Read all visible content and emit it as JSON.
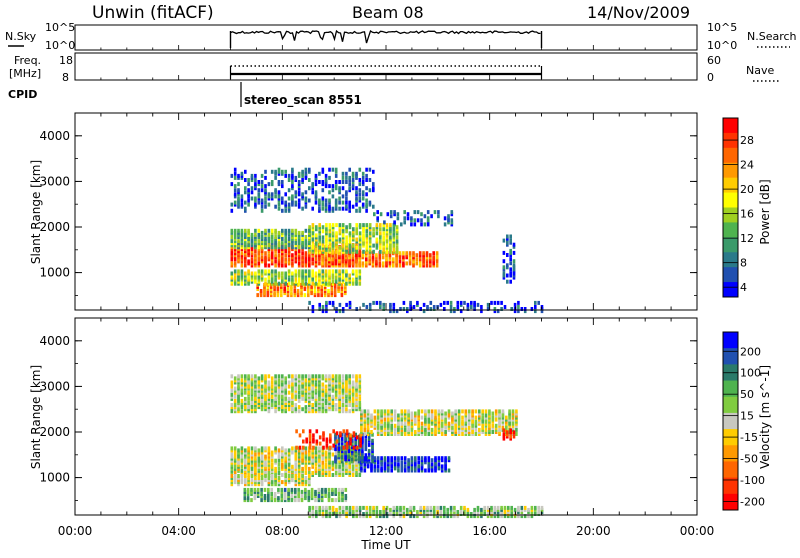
{
  "header": {
    "station": "Unwin (fitACF)",
    "beam": "Beam 08",
    "date": "14/Nov/2009"
  },
  "nsky_panel": {
    "left_label": "N.Sky",
    "right_label": "N.Search",
    "left_ticks": [
      "10^5",
      "10^0"
    ],
    "right_ticks": [
      "10^5",
      "10^0"
    ]
  },
  "freq_panel": {
    "left_label_line1": "Freq.",
    "left_label_line2": "[MHz]",
    "right_label": "Nave",
    "left_ticks": [
      "18",
      "8"
    ],
    "right_ticks": [
      "60",
      "0"
    ]
  },
  "cpid": {
    "label": "CPID",
    "program": "stereo_scan  8551"
  },
  "power_colorbar": {
    "title": "Power [dB]",
    "ticks": [
      "28",
      "24",
      "20",
      "16",
      "12",
      "8",
      "4"
    ],
    "colors": [
      "#ff0000",
      "#ff3300",
      "#ff6600",
      "#ff9900",
      "#ffcc00",
      "#ffff00",
      "#a0d020",
      "#4fb34f",
      "#3a9a6a",
      "#2a7a8a",
      "#2050b0",
      "#0000ff"
    ]
  },
  "velocity_colorbar": {
    "title": "Velocity [m s^-1]",
    "ticks": [
      "200",
      "100",
      "50",
      "15",
      "-15",
      "-50",
      "-100",
      "-200"
    ],
    "colors": [
      "#0000ff",
      "#2050b0",
      "#2a7a6a",
      "#4fb34f",
      "#80cc40",
      "#c8c8c0",
      "#ffcc00",
      "#ff9900",
      "#ff6600",
      "#ff3300",
      "#ff0000"
    ]
  },
  "chart_data": [
    {
      "type": "line",
      "name": "N.Sky / N.Search",
      "x_range": [
        "00:00",
        "24:00"
      ],
      "active_interval": [
        "06:00",
        "18:00"
      ],
      "y_scale": "log",
      "ylim": [
        "10^0",
        "10^5"
      ]
    },
    {
      "type": "line",
      "name": "Freq / Nave",
      "x_range": [
        "00:00",
        "24:00"
      ],
      "active_interval": [
        "06:00",
        "18:00"
      ],
      "ylim_left": [
        8,
        18
      ],
      "ylim_right": [
        0,
        60
      ]
    },
    {
      "type": "heatmap",
      "name": "Power",
      "xlabel": "Time UT",
      "ylabel": "Slant Range [km]",
      "x_ticks": [
        "00:00",
        "04:00",
        "08:00",
        "12:00",
        "16:00",
        "20:00",
        "00:00"
      ],
      "y_ticks": [
        1000,
        2000,
        3000,
        4000
      ],
      "ylim": [
        180,
        4500
      ],
      "x_range_hours": [
        0,
        24
      ],
      "colorbar": "Power [dB]",
      "blobs": [
        {
          "t0": 6.0,
          "t1": 11.0,
          "r0": 1200,
          "r1": 1650,
          "level": 0.85
        },
        {
          "t0": 9.5,
          "t1": 14.0,
          "r0": 1200,
          "r1": 1500,
          "level": 0.8
        },
        {
          "t0": 7.0,
          "t1": 10.5,
          "r0": 550,
          "r1": 800,
          "level": 0.75
        },
        {
          "t0": 6.0,
          "t1": 11.0,
          "r0": 800,
          "r1": 1100,
          "level": 0.45
        },
        {
          "t0": 9.0,
          "t1": 12.5,
          "r0": 1500,
          "r1": 2100,
          "level": 0.45
        },
        {
          "t0": 6.0,
          "t1": 9.0,
          "r0": 1600,
          "r1": 2000,
          "level": 0.35
        },
        {
          "t0": 6.0,
          "t1": 11.5,
          "r0": 2400,
          "r1": 3300,
          "level": 0.15
        },
        {
          "t0": 11.5,
          "t1": 14.5,
          "r0": 2100,
          "r1": 2400,
          "level": 0.15
        },
        {
          "t0": 9.0,
          "t1": 18.0,
          "r0": 200,
          "r1": 400,
          "level": 0.1
        },
        {
          "t0": 16.5,
          "t1": 17.0,
          "r0": 800,
          "r1": 1900,
          "level": 0.1
        }
      ]
    },
    {
      "type": "heatmap",
      "name": "Velocity",
      "xlabel": "Time UT",
      "ylabel": "Slant Range [km]",
      "x_ticks": [
        "00:00",
        "04:00",
        "08:00",
        "12:00",
        "16:00",
        "20:00",
        "00:00"
      ],
      "y_ticks": [
        1000,
        2000,
        3000,
        4000
      ],
      "ylim": [
        180,
        4500
      ],
      "x_range_hours": [
        0,
        24
      ],
      "colorbar": "Velocity [m s^-1]",
      "blobs": [
        {
          "t0": 6.0,
          "t1": 11.0,
          "r0": 1100,
          "r1": 1700,
          "level": 0.5
        },
        {
          "t0": 11.0,
          "t1": 14.5,
          "r0": 1200,
          "r1": 1500,
          "level": 0.95
        },
        {
          "t0": 10.0,
          "t1": 11.5,
          "r0": 1400,
          "r1": 2000,
          "level": 0.85
        },
        {
          "t0": 6.5,
          "t1": 10.5,
          "r0": 550,
          "r1": 800,
          "level": 0.65
        },
        {
          "t0": 6.0,
          "t1": 9.0,
          "r0": 900,
          "r1": 1100,
          "level": 0.5
        },
        {
          "t0": 8.5,
          "t1": 11.0,
          "r0": 1700,
          "r1": 2100,
          "level": 0.1
        },
        {
          "t0": 11.0,
          "t1": 17.0,
          "r0": 2000,
          "r1": 2500,
          "level": 0.5
        },
        {
          "t0": 6.0,
          "t1": 11.0,
          "r0": 2500,
          "r1": 3300,
          "level": 0.55
        },
        {
          "t0": 9.0,
          "t1": 18.0,
          "r0": 200,
          "r1": 400,
          "level": 0.6
        },
        {
          "t0": 16.5,
          "t1": 17.0,
          "r0": 1900,
          "r1": 2100,
          "level": 0.05
        }
      ]
    }
  ]
}
